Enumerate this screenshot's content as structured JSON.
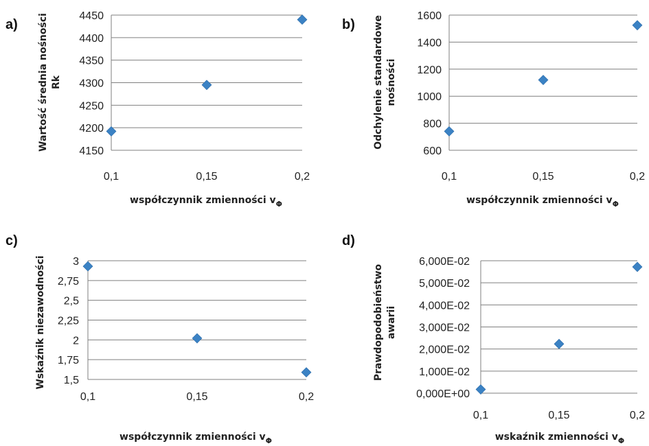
{
  "chart_data": [
    {
      "panel": "a)",
      "type": "scatter",
      "x": [
        "0,1",
        "0,15",
        "0,2"
      ],
      "y": [
        4192,
        4295,
        4440
      ],
      "ylim": [
        4150,
        4450
      ],
      "yticks": [
        "4150",
        "4200",
        "4250",
        "4300",
        "4350",
        "4400",
        "4450"
      ],
      "ylabel_lines": [
        "Wartość średnia nośności",
        "Rk"
      ],
      "xlabel": "współczynnik zmienności v",
      "xlabel_sub": "Φ",
      "grid": true,
      "marker_color": "#3b82c4"
    },
    {
      "panel": "b)",
      "type": "scatter",
      "x": [
        "0,1",
        "0,15",
        "0,2"
      ],
      "y": [
        740,
        1120,
        1525
      ],
      "ylim": [
        600,
        1600
      ],
      "yticks": [
        "600",
        "800",
        "1000",
        "1200",
        "1400",
        "1600"
      ],
      "ylabel_lines": [
        "Odchylenie standardowe",
        "nośności"
      ],
      "xlabel": "współczynnik zmienności v",
      "xlabel_sub": "Φ",
      "grid": true,
      "marker_color": "#3b82c4"
    },
    {
      "panel": "c)",
      "type": "scatter",
      "x": [
        "0,1",
        "0,15",
        "0,2"
      ],
      "y": [
        2.93,
        2.02,
        1.59
      ],
      "ylim": [
        1.5,
        3
      ],
      "yticks": [
        "1,5",
        "1,75",
        "2",
        "2,25",
        "2,5",
        "2,75",
        "3"
      ],
      "ylabel_lines": [
        "Wskaźnik niezawodności"
      ],
      "xlabel": "współczynnik zmienności v",
      "xlabel_sub": "Φ",
      "grid": true,
      "marker_color": "#3b82c4"
    },
    {
      "panel": "d)",
      "type": "scatter",
      "x": [
        "0,1",
        "0,15",
        "0,2"
      ],
      "y": [
        0.0017,
        0.0223,
        0.0572
      ],
      "ylim": [
        0,
        0.06
      ],
      "yticks": [
        "0,000E+00",
        "1,000E-02",
        "2,000E-02",
        "3,000E-02",
        "4,000E-02",
        "5,000E-02",
        "6,000E-02"
      ],
      "ylabel_lines": [
        "Prawdopodobieństwo",
        "awarii"
      ],
      "xlabel": "wskaźnik zmienności v",
      "xlabel_sub": "Φ",
      "grid": true,
      "marker_color": "#3b82c4"
    }
  ]
}
